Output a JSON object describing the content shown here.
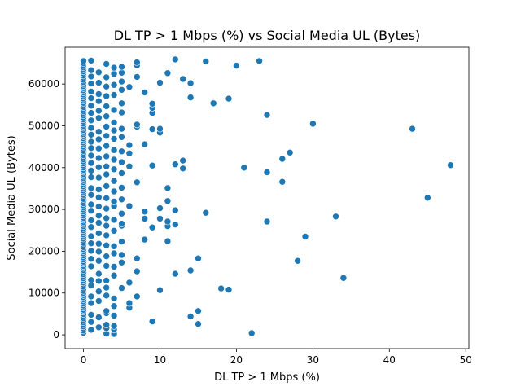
{
  "chart_data": {
    "type": "scatter",
    "title": "DL TP > 1 Mbps (%) vs Social Media UL (Bytes)",
    "xlabel": "DL TP > 1 Mbps (%)",
    "ylabel": "Social Media UL (Bytes)",
    "xlim": [
      -2.4,
      50.4
    ],
    "ylim": [
      -3300,
      68800
    ],
    "xticks": [
      0,
      10,
      20,
      30,
      40,
      50
    ],
    "yticks": [
      0,
      10000,
      20000,
      30000,
      40000,
      50000,
      60000
    ],
    "xtick_labels": [
      "0",
      "10",
      "20",
      "30",
      "40",
      "50"
    ],
    "ytick_labels": [
      "0",
      "10000",
      "20000",
      "30000",
      "40000",
      "50000",
      "60000"
    ],
    "grid": false,
    "legend": "none",
    "marker_color": "#1f77b4",
    "points": [
      [
        0,
        500
      ],
      [
        0,
        1000
      ],
      [
        0,
        1500
      ],
      [
        0,
        2000
      ],
      [
        0,
        2500
      ],
      [
        0,
        3000
      ],
      [
        0,
        3500
      ],
      [
        0,
        4000
      ],
      [
        0,
        4500
      ],
      [
        0,
        5000
      ],
      [
        0,
        5500
      ],
      [
        0,
        6000
      ],
      [
        0,
        6500
      ],
      [
        0,
        7000
      ],
      [
        0,
        7500
      ],
      [
        0,
        8000
      ],
      [
        0,
        8500
      ],
      [
        0,
        9000
      ],
      [
        0,
        9500
      ],
      [
        0,
        10000
      ],
      [
        0,
        10500
      ],
      [
        0,
        11000
      ],
      [
        0,
        11500
      ],
      [
        0,
        12000
      ],
      [
        0,
        12500
      ],
      [
        0,
        13000
      ],
      [
        0,
        13500
      ],
      [
        0,
        14000
      ],
      [
        0,
        14500
      ],
      [
        0,
        15000
      ],
      [
        0,
        15500
      ],
      [
        0,
        16000
      ],
      [
        0,
        16500
      ],
      [
        0,
        17000
      ],
      [
        0,
        17500
      ],
      [
        0,
        18000
      ],
      [
        0,
        18500
      ],
      [
        0,
        19000
      ],
      [
        0,
        19500
      ],
      [
        0,
        20000
      ],
      [
        0,
        20500
      ],
      [
        0,
        21000
      ],
      [
        0,
        21500
      ],
      [
        0,
        22000
      ],
      [
        0,
        22500
      ],
      [
        0,
        23000
      ],
      [
        0,
        23500
      ],
      [
        0,
        24000
      ],
      [
        0,
        24500
      ],
      [
        0,
        25000
      ],
      [
        0,
        25500
      ],
      [
        0,
        26000
      ],
      [
        0,
        26500
      ],
      [
        0,
        27000
      ],
      [
        0,
        27500
      ],
      [
        0,
        28000
      ],
      [
        0,
        28500
      ],
      [
        0,
        29000
      ],
      [
        0,
        29500
      ],
      [
        0,
        30000
      ],
      [
        0,
        30500
      ],
      [
        0,
        31000
      ],
      [
        0,
        31500
      ],
      [
        0,
        32000
      ],
      [
        0,
        32500
      ],
      [
        0,
        33000
      ],
      [
        0,
        33500
      ],
      [
        0,
        34000
      ],
      [
        0,
        34500
      ],
      [
        0,
        35000
      ],
      [
        0,
        35500
      ],
      [
        0,
        36000
      ],
      [
        0,
        36500
      ],
      [
        0,
        37000
      ],
      [
        0,
        37500
      ],
      [
        0,
        38000
      ],
      [
        0,
        38500
      ],
      [
        0,
        39000
      ],
      [
        0,
        39500
      ],
      [
        0,
        40000
      ],
      [
        0,
        40500
      ],
      [
        0,
        41000
      ],
      [
        0,
        41500
      ],
      [
        0,
        42000
      ],
      [
        0,
        42500
      ],
      [
        0,
        43000
      ],
      [
        0,
        43500
      ],
      [
        0,
        44000
      ],
      [
        0,
        44500
      ],
      [
        0,
        45000
      ],
      [
        0,
        45500
      ],
      [
        0,
        46000
      ],
      [
        0,
        46500
      ],
      [
        0,
        47000
      ],
      [
        0,
        47500
      ],
      [
        0,
        48000
      ],
      [
        0,
        48500
      ],
      [
        0,
        49000
      ],
      [
        0,
        49500
      ],
      [
        0,
        50000
      ],
      [
        0,
        50500
      ],
      [
        0,
        51000
      ],
      [
        0,
        51500
      ],
      [
        0,
        52000
      ],
      [
        0,
        52500
      ],
      [
        0,
        53000
      ],
      [
        0,
        53500
      ],
      [
        0,
        54000
      ],
      [
        0,
        54500
      ],
      [
        0,
        55000
      ],
      [
        0,
        55500
      ],
      [
        0,
        56000
      ],
      [
        0,
        56500
      ],
      [
        0,
        57000
      ],
      [
        0,
        57500
      ],
      [
        0,
        58000
      ],
      [
        0,
        58500
      ],
      [
        0,
        59000
      ],
      [
        0,
        59500
      ],
      [
        0,
        60000
      ],
      [
        0,
        60500
      ],
      [
        0,
        61000
      ],
      [
        0,
        61500
      ],
      [
        0,
        62000
      ],
      [
        0,
        62500
      ],
      [
        0,
        63000
      ],
      [
        0,
        63500
      ],
      [
        0,
        64000
      ],
      [
        0,
        64500
      ],
      [
        0,
        65000
      ],
      [
        0,
        65500
      ],
      [
        1,
        1200
      ],
      [
        1,
        3100
      ],
      [
        1,
        4800
      ],
      [
        1,
        7600
      ],
      [
        1,
        9200
      ],
      [
        1,
        11800
      ],
      [
        1,
        13100
      ],
      [
        1,
        16400
      ],
      [
        1,
        18200
      ],
      [
        1,
        20100
      ],
      [
        1,
        21900
      ],
      [
        1,
        23600
      ],
      [
        1,
        25800
      ],
      [
        1,
        27400
      ],
      [
        1,
        29700
      ],
      [
        1,
        31200
      ],
      [
        1,
        33500
      ],
      [
        1,
        35100
      ],
      [
        1,
        37700
      ],
      [
        1,
        39300
      ],
      [
        1,
        41100
      ],
      [
        1,
        42900
      ],
      [
        1,
        44700
      ],
      [
        1,
        46200
      ],
      [
        1,
        47900
      ],
      [
        1,
        49500
      ],
      [
        1,
        51300
      ],
      [
        1,
        53100
      ],
      [
        1,
        54800
      ],
      [
        1,
        56600
      ],
      [
        1,
        58200
      ],
      [
        1,
        60100
      ],
      [
        1,
        61800
      ],
      [
        1,
        63300
      ],
      [
        1,
        65600
      ],
      [
        2,
        1800
      ],
      [
        2,
        4200
      ],
      [
        2,
        8100
      ],
      [
        2,
        10400
      ],
      [
        2,
        12900
      ],
      [
        2,
        14600
      ],
      [
        2,
        17700
      ],
      [
        2,
        19900
      ],
      [
        2,
        21800
      ],
      [
        2,
        24300
      ],
      [
        2,
        26800
      ],
      [
        2,
        28500
      ],
      [
        2,
        30700
      ],
      [
        2,
        32900
      ],
      [
        2,
        34800
      ],
      [
        2,
        37600
      ],
      [
        2,
        40100
      ],
      [
        2,
        42300
      ],
      [
        2,
        44600
      ],
      [
        2,
        46800
      ],
      [
        2,
        48600
      ],
      [
        2,
        51900
      ],
      [
        2,
        53600
      ],
      [
        2,
        55900
      ],
      [
        2,
        57600
      ],
      [
        2,
        60300
      ],
      [
        2,
        62800
      ],
      [
        3,
        300
      ],
      [
        3,
        1600
      ],
      [
        3,
        2400
      ],
      [
        3,
        5200
      ],
      [
        3,
        5700
      ],
      [
        3,
        9400
      ],
      [
        3,
        11300
      ],
      [
        3,
        13000
      ],
      [
        3,
        16500
      ],
      [
        3,
        18800
      ],
      [
        3,
        21400
      ],
      [
        3,
        23800
      ],
      [
        3,
        26100
      ],
      [
        3,
        27900
      ],
      [
        3,
        30200
      ],
      [
        3,
        32700
      ],
      [
        3,
        35600
      ],
      [
        3,
        38400
      ],
      [
        3,
        40300
      ],
      [
        3,
        42700
      ],
      [
        3,
        45200
      ],
      [
        3,
        47600
      ],
      [
        3,
        49800
      ],
      [
        3,
        52300
      ],
      [
        3,
        54700
      ],
      [
        3,
        57100
      ],
      [
        3,
        59400
      ],
      [
        3,
        61600
      ],
      [
        3,
        64800
      ],
      [
        4,
        200
      ],
      [
        4,
        1300
      ],
      [
        4,
        2100
      ],
      [
        4,
        4600
      ],
      [
        4,
        6900
      ],
      [
        4,
        8700
      ],
      [
        4,
        14200
      ],
      [
        4,
        16300
      ],
      [
        4,
        19500
      ],
      [
        4,
        21200
      ],
      [
        4,
        24900
      ],
      [
        4,
        27500
      ],
      [
        4,
        30800
      ],
      [
        4,
        31900
      ],
      [
        4,
        34300
      ],
      [
        4,
        36800
      ],
      [
        4,
        39600
      ],
      [
        4,
        41900
      ],
      [
        4,
        44200
      ],
      [
        4,
        46900
      ],
      [
        4,
        48900
      ],
      [
        4,
        50800
      ],
      [
        4,
        53800
      ],
      [
        4,
        57400
      ],
      [
        4,
        59800
      ],
      [
        4,
        62400
      ],
      [
        4,
        63900
      ],
      [
        5,
        11200
      ],
      [
        5,
        17300
      ],
      [
        5,
        19100
      ],
      [
        5,
        22300
      ],
      [
        5,
        26100
      ],
      [
        5,
        26600
      ],
      [
        5,
        29000
      ],
      [
        5,
        32400
      ],
      [
        5,
        35200
      ],
      [
        5,
        38700
      ],
      [
        5,
        41300
      ],
      [
        5,
        43900
      ],
      [
        5,
        47300
      ],
      [
        5,
        49300
      ],
      [
        5,
        53200
      ],
      [
        5,
        55400
      ],
      [
        5,
        58600
      ],
      [
        5,
        60600
      ],
      [
        5,
        62700
      ],
      [
        5,
        64100
      ],
      [
        6,
        6500
      ],
      [
        6,
        7600
      ],
      [
        6,
        12500
      ],
      [
        6,
        30800
      ],
      [
        6,
        40300
      ],
      [
        6,
        43400
      ],
      [
        6,
        45400
      ],
      [
        6,
        59300
      ],
      [
        7,
        9200
      ],
      [
        7,
        15200
      ],
      [
        7,
        18300
      ],
      [
        7,
        36500
      ],
      [
        7,
        49800
      ],
      [
        7,
        50300
      ],
      [
        7,
        61700
      ],
      [
        7,
        64500
      ],
      [
        7,
        65200
      ],
      [
        8,
        22800
      ],
      [
        8,
        27800
      ],
      [
        8,
        29500
      ],
      [
        8,
        45600
      ],
      [
        8,
        58000
      ],
      [
        9,
        3200
      ],
      [
        9,
        25700
      ],
      [
        9,
        40500
      ],
      [
        9,
        49200
      ],
      [
        9,
        53100
      ],
      [
        9,
        54300
      ],
      [
        9,
        55300
      ],
      [
        10,
        10700
      ],
      [
        10,
        27800
      ],
      [
        10,
        30300
      ],
      [
        10,
        48400
      ],
      [
        10,
        49300
      ],
      [
        10,
        60300
      ],
      [
        11,
        22400
      ],
      [
        11,
        26000
      ],
      [
        11,
        27100
      ],
      [
        11,
        32000
      ],
      [
        11,
        35100
      ],
      [
        11,
        62600
      ],
      [
        12,
        14600
      ],
      [
        12,
        26400
      ],
      [
        12,
        29800
      ],
      [
        12,
        40800
      ],
      [
        12,
        65900
      ],
      [
        13,
        39800
      ],
      [
        13,
        41700
      ],
      [
        13,
        61200
      ],
      [
        14,
        4400
      ],
      [
        14,
        15400
      ],
      [
        14,
        56800
      ],
      [
        14,
        60200
      ],
      [
        15,
        2600
      ],
      [
        15,
        5700
      ],
      [
        15,
        18300
      ],
      [
        16,
        29200
      ],
      [
        16,
        65400
      ],
      [
        17,
        55400
      ],
      [
        18,
        11100
      ],
      [
        19,
        10800
      ],
      [
        19,
        56500
      ],
      [
        20,
        64400
      ],
      [
        21,
        40000
      ],
      [
        22,
        400
      ],
      [
        23,
        65500
      ],
      [
        24,
        27100
      ],
      [
        24,
        38900
      ],
      [
        24,
        52600
      ],
      [
        26,
        36600
      ],
      [
        26,
        42100
      ],
      [
        27,
        43600
      ],
      [
        28,
        17700
      ],
      [
        29,
        23500
      ],
      [
        30,
        50500
      ],
      [
        33,
        28300
      ],
      [
        34,
        13600
      ],
      [
        43,
        49300
      ],
      [
        45,
        32800
      ],
      [
        48,
        40600
      ]
    ]
  }
}
